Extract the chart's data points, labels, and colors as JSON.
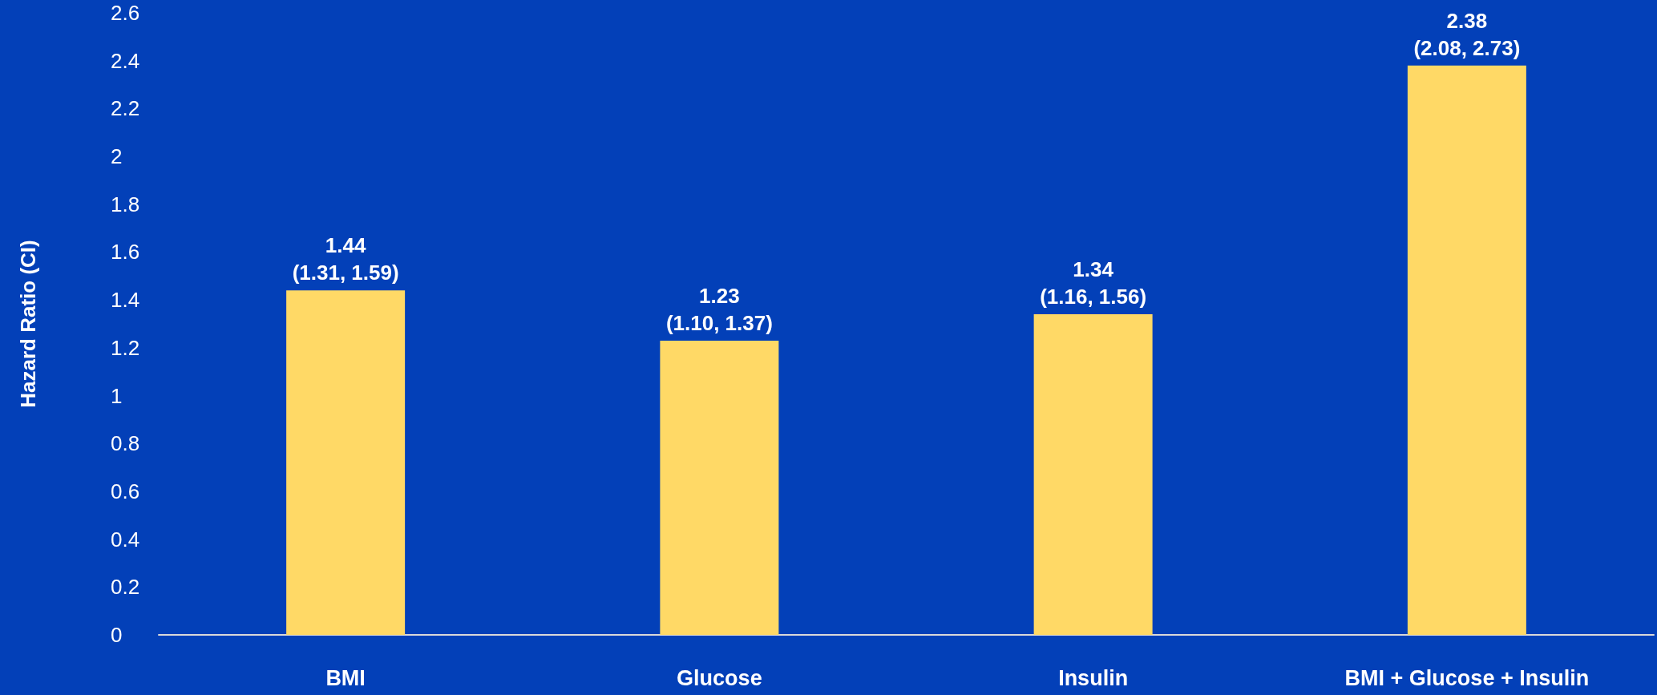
{
  "chart_data": {
    "type": "bar",
    "ylabel": "Hazard Ratio (CI)",
    "categories": [
      "BMI",
      "Glucose",
      "Insulin",
      "BMI + Glucose + Insulin"
    ],
    "values": [
      1.44,
      1.23,
      1.34,
      2.38
    ],
    "value_labels": [
      "1.44\n(1.31, 1.59)",
      "1.23\n(1.10, 1.37)",
      "1.34\n(1.16, 1.56)",
      "2.38\n(2.08, 2.73)"
    ],
    "color": "#ffd966",
    "ylim": [
      0,
      2.6
    ],
    "yticks": [
      0,
      0.2,
      0.4,
      0.6,
      0.8,
      1,
      1.2,
      1.4,
      1.6,
      1.8,
      2,
      2.2,
      2.4,
      2.6
    ],
    "grid": false
  }
}
